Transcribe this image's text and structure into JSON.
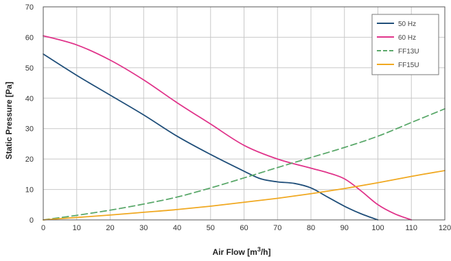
{
  "chart_data": {
    "type": "line",
    "title": "",
    "xlabel": "Air Flow [m",
    "xlabel_sup": "3",
    "xlabel_end": "/h]",
    "ylabel": "Static Pressure [Pa]",
    "xlim": [
      0,
      120
    ],
    "ylim": [
      0,
      70
    ],
    "xticks": [
      0,
      10,
      20,
      30,
      40,
      50,
      60,
      70,
      80,
      90,
      100,
      110,
      120
    ],
    "yticks": [
      0,
      10,
      20,
      30,
      40,
      50,
      60,
      70
    ],
    "grid": true,
    "legend_position": "top-right",
    "series": [
      {
        "name": "50 Hz",
        "color": "#1f4e79",
        "dash": "solid",
        "x": [
          0,
          10,
          20,
          30,
          40,
          50,
          60,
          65,
          70,
          75,
          80,
          85,
          90,
          95,
          100
        ],
        "y": [
          54.5,
          47.5,
          41,
          34.5,
          27.5,
          21.5,
          16,
          13.5,
          12.5,
          12,
          10.5,
          7.5,
          4.5,
          2,
          0
        ]
      },
      {
        "name": "60 Hz",
        "color": "#e0338a",
        "dash": "solid",
        "x": [
          0,
          10,
          20,
          30,
          40,
          50,
          60,
          70,
          80,
          85,
          90,
          95,
          100,
          105,
          110
        ],
        "y": [
          60.5,
          57.5,
          52.5,
          46,
          38.5,
          31.5,
          24.5,
          20,
          17,
          15.5,
          13.5,
          9.5,
          5,
          2,
          0
        ]
      },
      {
        "name": "FF13U",
        "color": "#5aa86a",
        "dash": "dashed",
        "x": [
          0,
          10,
          20,
          30,
          40,
          50,
          60,
          70,
          80,
          90,
          100,
          110,
          120
        ],
        "y": [
          0,
          1.5,
          3.2,
          5.2,
          7.5,
          10.5,
          13.8,
          17.2,
          20.5,
          23.8,
          27.5,
          32,
          36.5
        ]
      },
      {
        "name": "FF15U",
        "color": "#f0a820",
        "dash": "solid",
        "x": [
          0,
          10,
          20,
          30,
          40,
          50,
          60,
          70,
          80,
          90,
          100,
          110,
          120
        ],
        "y": [
          0,
          0.8,
          1.6,
          2.5,
          3.4,
          4.5,
          5.8,
          7.1,
          8.6,
          10.3,
          12.2,
          14.3,
          16.2
        ]
      }
    ]
  }
}
